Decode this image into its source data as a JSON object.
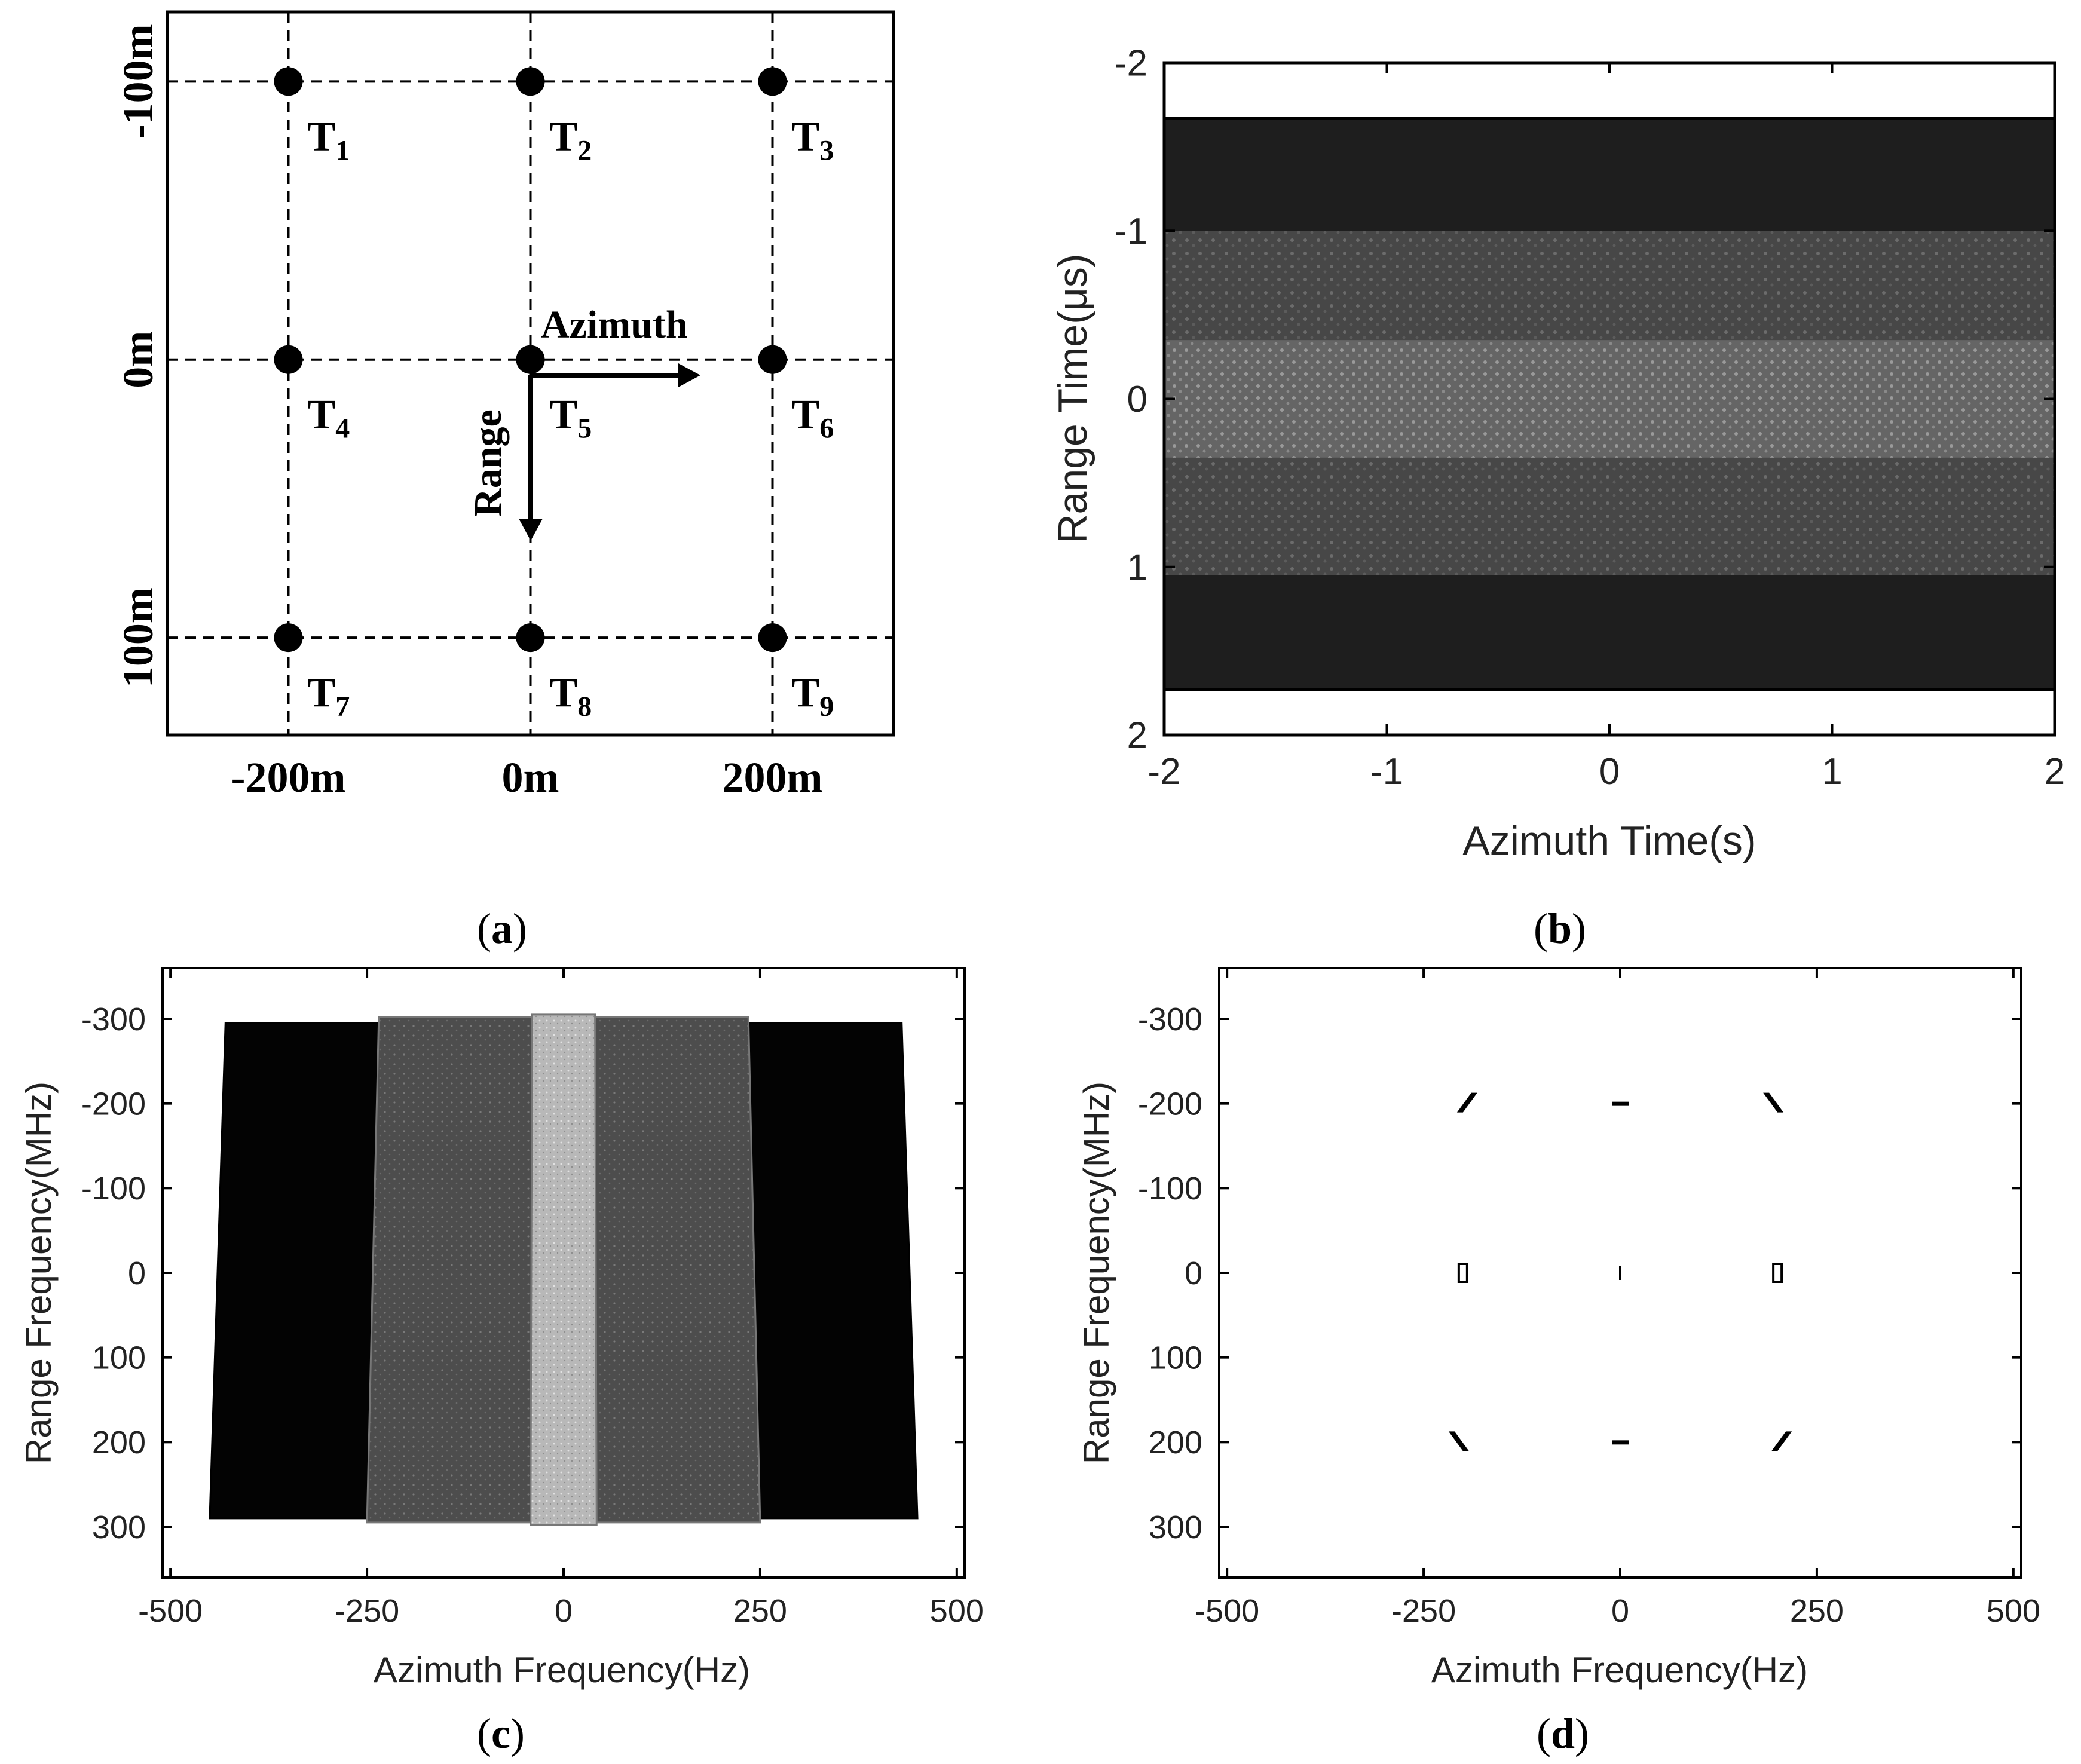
{
  "panel_captions": {
    "a": {
      "open": "(",
      "letter": "a",
      "close": ")"
    },
    "b": {
      "open": "(",
      "letter": "b",
      "close": ")"
    },
    "c": {
      "open": "(",
      "letter": "c",
      "close": ")"
    },
    "d": {
      "open": "(",
      "letter": "d",
      "close": ")"
    }
  },
  "chart_data": [
    {
      "id": "a",
      "type": "scatter",
      "title": "",
      "xlabel": "",
      "ylabel": "",
      "xlim": [
        -300,
        300
      ],
      "ylim": [
        -125,
        135
      ],
      "y_inverted": true,
      "x_tick_values": [
        -200,
        0,
        200
      ],
      "x_tick_labels": [
        "-200m",
        "0m",
        "200m"
      ],
      "y_tick_values": [
        -100,
        0,
        100
      ],
      "y_tick_labels": [
        "-100m",
        "0m",
        "100m"
      ],
      "targets": [
        {
          "base": "T",
          "sub": "1",
          "x": -200,
          "y": -100
        },
        {
          "base": "T",
          "sub": "2",
          "x": 0,
          "y": -100
        },
        {
          "base": "T",
          "sub": "3",
          "x": 200,
          "y": -100
        },
        {
          "base": "T",
          "sub": "4",
          "x": -200,
          "y": 0
        },
        {
          "base": "T",
          "sub": "5",
          "x": 0,
          "y": 0
        },
        {
          "base": "T",
          "sub": "6",
          "x": 200,
          "y": 0
        },
        {
          "base": "T",
          "sub": "7",
          "x": -200,
          "y": 100
        },
        {
          "base": "T",
          "sub": "8",
          "x": 0,
          "y": 100
        },
        {
          "base": "T",
          "sub": "9",
          "x": 200,
          "y": 100
        }
      ],
      "annotations": {
        "azimuth": "Azimuth",
        "range": "Range"
      },
      "colors": {
        "dot": "#000000",
        "grid": "#000000"
      }
    },
    {
      "id": "b",
      "type": "heatmap",
      "title": "",
      "xlabel": "Azimuth Time(s)",
      "ylabel": "Range Time(μs)",
      "xlim": [
        -2,
        2
      ],
      "ylim": [
        -2,
        2
      ],
      "y_inverted": true,
      "x_ticks": [
        -2,
        -1,
        0,
        1,
        2
      ],
      "y_ticks": [
        -2,
        -1,
        0,
        1,
        2
      ],
      "bands": [
        {
          "y_from": -1.66,
          "y_to": -1.0,
          "level": "dark",
          "color": "#1e1e1e"
        },
        {
          "y_from": -1.0,
          "y_to": -0.35,
          "level": "mid",
          "color": "#4a4a4a"
        },
        {
          "y_from": -0.35,
          "y_to": 0.35,
          "level": "bright",
          "color": "#6e6e6e"
        },
        {
          "y_from": 0.35,
          "y_to": 1.05,
          "level": "mid",
          "color": "#4a4a4a"
        },
        {
          "y_from": 1.05,
          "y_to": 1.72,
          "level": "dark",
          "color": "#1e1e1e"
        }
      ]
    },
    {
      "id": "c",
      "type": "heatmap",
      "title": "",
      "xlabel": "Azimuth Frequency(Hz)",
      "ylabel": "Range Frequency(MHz)",
      "xlim": [
        -510,
        510
      ],
      "ylim": [
        -360,
        360
      ],
      "y_inverted": true,
      "x_ticks": [
        -500,
        -250,
        0,
        250,
        500
      ],
      "y_ticks": [
        -300,
        -200,
        -100,
        0,
        100,
        200,
        300
      ],
      "regions": [
        {
          "x_top": [
            -430,
            430
          ],
          "x_bottom": [
            -450,
            450
          ],
          "y": [
            -295,
            290
          ],
          "level": "dark",
          "color": "#030303"
        },
        {
          "x_top": [
            -235,
            235
          ],
          "x_bottom": [
            -250,
            250
          ],
          "y": [
            -302,
            295
          ],
          "level": "mid",
          "color": "#555555"
        },
        {
          "x_top": [
            -40,
            40
          ],
          "x_bottom": [
            -42,
            42
          ],
          "y": [
            -305,
            298
          ],
          "level": "bright",
          "color": "#c4c4c4"
        }
      ]
    },
    {
      "id": "d",
      "type": "scatter",
      "title": "",
      "xlabel": "Azimuth Frequency(Hz)",
      "ylabel": "Range Frequency(MHz)",
      "xlim": [
        -510,
        510
      ],
      "ylim": [
        -360,
        360
      ],
      "y_inverted": true,
      "x_ticks": [
        -500,
        -250,
        0,
        250,
        500
      ],
      "y_ticks": [
        -300,
        -200,
        -100,
        0,
        100,
        200,
        300
      ],
      "points": [
        {
          "x": -200,
          "y": -200,
          "shape": "slash"
        },
        {
          "x": 0,
          "y": -200,
          "shape": "dash"
        },
        {
          "x": 200,
          "y": -200,
          "shape": "backslash"
        },
        {
          "x": -200,
          "y": 0,
          "shape": "box"
        },
        {
          "x": 0,
          "y": 0,
          "shape": "line"
        },
        {
          "x": 200,
          "y": 0,
          "shape": "box"
        },
        {
          "x": -200,
          "y": 200,
          "shape": "backslash"
        },
        {
          "x": 0,
          "y": 200,
          "shape": "dash"
        },
        {
          "x": 200,
          "y": 200,
          "shape": "slash"
        }
      ]
    }
  ]
}
